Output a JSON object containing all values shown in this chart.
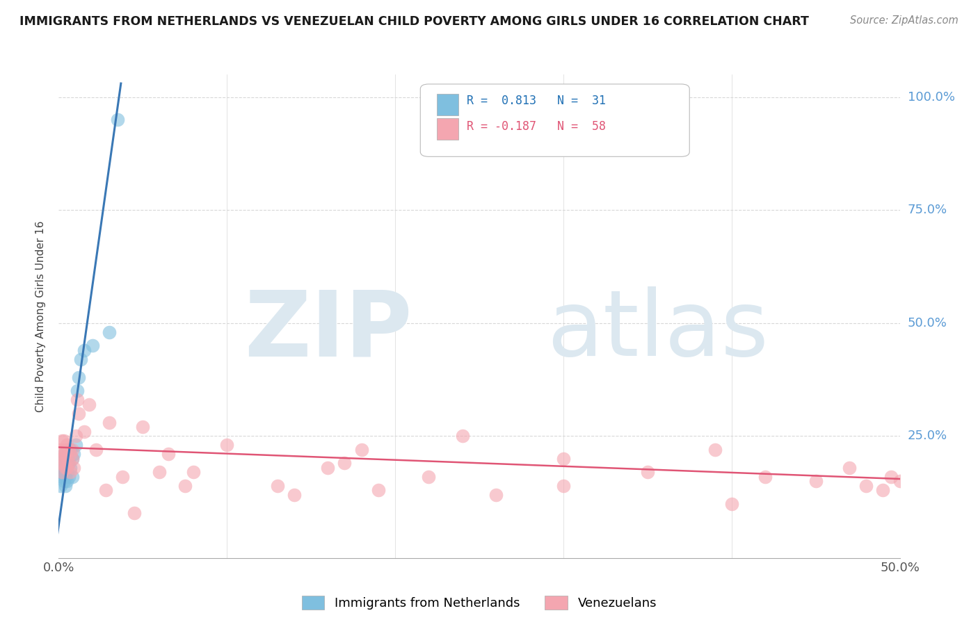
{
  "title": "IMMIGRANTS FROM NETHERLANDS VS VENEZUELAN CHILD POVERTY AMONG GIRLS UNDER 16 CORRELATION CHART",
  "source": "Source: ZipAtlas.com",
  "ylabel": "Child Poverty Among Girls Under 16",
  "yticks": [
    0.0,
    0.25,
    0.5,
    0.75,
    1.0
  ],
  "ytick_labels": [
    "",
    "25.0%",
    "50.0%",
    "75.0%",
    "100.0%"
  ],
  "xlim": [
    0.0,
    0.5
  ],
  "ylim": [
    -0.02,
    1.05
  ],
  "blue_color": "#7fbfdf",
  "pink_color": "#f4a6b0",
  "blue_line_color": "#3a78b5",
  "pink_line_color": "#e05575",
  "watermark_zip": "ZIP",
  "watermark_atlas": "atlas",
  "watermark_color": "#dce8f0",
  "blue_scatter_x": [
    0.001,
    0.001,
    0.002,
    0.002,
    0.002,
    0.003,
    0.003,
    0.003,
    0.003,
    0.004,
    0.004,
    0.004,
    0.004,
    0.005,
    0.005,
    0.005,
    0.006,
    0.006,
    0.007,
    0.007,
    0.008,
    0.008,
    0.009,
    0.01,
    0.011,
    0.012,
    0.013,
    0.015,
    0.02,
    0.03,
    0.035
  ],
  "blue_scatter_y": [
    0.14,
    0.17,
    0.2,
    0.18,
    0.16,
    0.19,
    0.17,
    0.21,
    0.15,
    0.18,
    0.16,
    0.2,
    0.14,
    0.19,
    0.17,
    0.15,
    0.19,
    0.16,
    0.22,
    0.18,
    0.2,
    0.16,
    0.21,
    0.23,
    0.35,
    0.38,
    0.42,
    0.44,
    0.45,
    0.48,
    0.95
  ],
  "pink_scatter_x": [
    0.001,
    0.001,
    0.002,
    0.002,
    0.002,
    0.003,
    0.003,
    0.003,
    0.004,
    0.004,
    0.004,
    0.005,
    0.005,
    0.005,
    0.006,
    0.006,
    0.007,
    0.007,
    0.008,
    0.008,
    0.009,
    0.01,
    0.011,
    0.012,
    0.015,
    0.018,
    0.022,
    0.03,
    0.038,
    0.05,
    0.065,
    0.08,
    0.1,
    0.13,
    0.16,
    0.19,
    0.22,
    0.26,
    0.3,
    0.35,
    0.39,
    0.42,
    0.45,
    0.47,
    0.48,
    0.49,
    0.495,
    0.5,
    0.3,
    0.18,
    0.24,
    0.14,
    0.4,
    0.06,
    0.075,
    0.045,
    0.028,
    0.17
  ],
  "pink_scatter_y": [
    0.19,
    0.22,
    0.24,
    0.2,
    0.17,
    0.21,
    0.19,
    0.24,
    0.22,
    0.18,
    0.21,
    0.23,
    0.2,
    0.18,
    0.22,
    0.19,
    0.21,
    0.17,
    0.22,
    0.2,
    0.18,
    0.25,
    0.33,
    0.3,
    0.26,
    0.32,
    0.22,
    0.28,
    0.16,
    0.27,
    0.21,
    0.17,
    0.23,
    0.14,
    0.18,
    0.13,
    0.16,
    0.12,
    0.2,
    0.17,
    0.22,
    0.16,
    0.15,
    0.18,
    0.14,
    0.13,
    0.16,
    0.15,
    0.14,
    0.22,
    0.25,
    0.12,
    0.1,
    0.17,
    0.14,
    0.08,
    0.13,
    0.19
  ],
  "blue_trendline_x": [
    -0.002,
    0.037
  ],
  "blue_trendline_y": [
    0.0,
    1.03
  ],
  "pink_trendline_x": [
    0.0,
    0.5
  ],
  "pink_trendline_y": [
    0.225,
    0.155
  ],
  "background_color": "#ffffff",
  "grid_color": "#d8d8d8",
  "label_netherlands": "Immigrants from Netherlands",
  "label_venezuelans": "Venezuelans"
}
